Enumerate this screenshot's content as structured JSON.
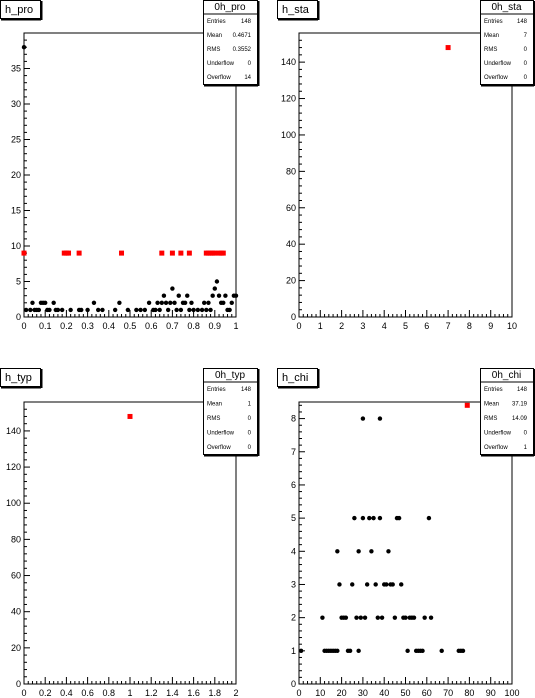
{
  "colors": {
    "black_series": "#000000",
    "red_series": "#ff0000"
  },
  "chart_data": [
    {
      "type": "scatter",
      "title": "h_pro",
      "stats": {
        "name": "0h_pro",
        "rows": [
          {
            "label": "Entries",
            "value": "148"
          },
          {
            "label": "Mean",
            "value": "0.4671"
          },
          {
            "label": "RMS",
            "value": "0.3552"
          },
          {
            "label": "Underflow",
            "value": "0"
          },
          {
            "label": "Overflow",
            "value": "14"
          }
        ]
      },
      "xlim": [
        0,
        1
      ],
      "ylim": [
        0,
        40
      ],
      "xticks": [
        0,
        0.1,
        0.2,
        0.3,
        0.4,
        0.5,
        0.6,
        0.7,
        0.8,
        0.9,
        1
      ],
      "xtick_labels": [
        "0",
        "0.1",
        "0.2",
        "0.3",
        "0.4",
        "0.5",
        "0.6",
        "0.7",
        "0.8",
        "0.9",
        "1"
      ],
      "yticks": [
        0,
        5,
        10,
        15,
        20,
        25,
        30,
        35
      ],
      "ytick_labels": [
        "0",
        "5",
        "10",
        "15",
        "20",
        "25",
        "30",
        "35"
      ],
      "series": [
        {
          "color": "black",
          "marker": "circle",
          "x": [
            0,
            0.01,
            0.03,
            0.04,
            0.05,
            0.06,
            0.07,
            0.08,
            0.09,
            0.1,
            0.11,
            0.12,
            0.14,
            0.15,
            0.16,
            0.18,
            0.22,
            0.26,
            0.27,
            0.3,
            0.33,
            0.35,
            0.37,
            0.43,
            0.45,
            0.49,
            0.53,
            0.55,
            0.57,
            0.59,
            0.61,
            0.62,
            0.63,
            0.64,
            0.65,
            0.66,
            0.67,
            0.68,
            0.69,
            0.7,
            0.71,
            0.72,
            0.73,
            0.74,
            0.75,
            0.76,
            0.77,
            0.78,
            0.79,
            0.8,
            0.82,
            0.84,
            0.85,
            0.86,
            0.87,
            0.88,
            0.89,
            0.9,
            0.91,
            0.92,
            0.93,
            0.94,
            0.95,
            0.96,
            0.97,
            0.98,
            0.99,
            1.0
          ],
          "y": [
            38,
            1,
            1,
            2,
            1,
            1,
            1,
            2,
            2,
            2,
            1,
            1,
            2,
            1,
            1,
            1,
            1,
            1,
            1,
            1,
            2,
            1,
            1,
            1,
            2,
            1,
            1,
            1,
            1,
            2,
            1,
            1,
            2,
            1,
            2,
            3,
            2,
            1,
            2,
            4,
            2,
            1,
            3,
            1,
            2,
            2,
            3,
            1,
            2,
            1,
            1,
            1,
            2,
            1,
            2,
            1,
            3,
            4,
            5,
            3,
            2,
            2,
            3,
            1,
            1,
            2,
            3,
            3
          ]
        },
        {
          "color": "red",
          "marker": "square",
          "x": [
            0.0,
            0.19,
            0.2,
            0.21,
            0.26,
            0.46,
            0.65,
            0.7,
            0.74,
            0.78,
            0.86,
            0.87,
            0.88,
            0.89,
            0.9,
            0.92,
            0.93,
            0.94
          ],
          "y": [
            9,
            9,
            9,
            9,
            9,
            9,
            9,
            9,
            9,
            9,
            9,
            9,
            9,
            9,
            9,
            9,
            9,
            9
          ]
        }
      ]
    },
    {
      "type": "scatter",
      "title": "h_sta",
      "stats": {
        "name": "0h_sta",
        "rows": [
          {
            "label": "Entries",
            "value": "148"
          },
          {
            "label": "Mean",
            "value": "7"
          },
          {
            "label": "RMS",
            "value": "0"
          },
          {
            "label": "Underflow",
            "value": "0"
          },
          {
            "label": "Overflow",
            "value": "0"
          }
        ]
      },
      "xlim": [
        0,
        10
      ],
      "ylim": [
        0,
        156
      ],
      "xticks": [
        0,
        1,
        2,
        3,
        4,
        5,
        6,
        7,
        8,
        9,
        10
      ],
      "xtick_labels": [
        "0",
        "1",
        "2",
        "3",
        "4",
        "5",
        "6",
        "7",
        "8",
        "9",
        "10"
      ],
      "yticks": [
        0,
        20,
        40,
        60,
        80,
        100,
        120,
        140
      ],
      "ytick_labels": [
        "0",
        "20",
        "40",
        "60",
        "80",
        "100",
        "120",
        "140"
      ],
      "series": [
        {
          "color": "red",
          "marker": "square",
          "x": [
            7
          ],
          "y": [
            148
          ]
        }
      ]
    },
    {
      "type": "scatter",
      "title": "h_typ",
      "stats": {
        "name": "0h_typ",
        "rows": [
          {
            "label": "Entries",
            "value": "148"
          },
          {
            "label": "Mean",
            "value": "1"
          },
          {
            "label": "RMS",
            "value": "0"
          },
          {
            "label": "Underflow",
            "value": "0"
          },
          {
            "label": "Overflow",
            "value": "0"
          }
        ]
      },
      "xlim": [
        0,
        2
      ],
      "ylim": [
        0,
        156
      ],
      "xticks": [
        0,
        0.2,
        0.4,
        0.6,
        0.8,
        1,
        1.2,
        1.4,
        1.6,
        1.8,
        2
      ],
      "xtick_labels": [
        "0",
        "0.2",
        "0.4",
        "0.6",
        "0.8",
        "1",
        "1.2",
        "1.4",
        "1.6",
        "1.8",
        "2"
      ],
      "yticks": [
        0,
        20,
        40,
        60,
        80,
        100,
        120,
        140
      ],
      "ytick_labels": [
        "0",
        "20",
        "40",
        "60",
        "80",
        "100",
        "120",
        "140"
      ],
      "series": [
        {
          "color": "red",
          "marker": "square",
          "x": [
            1
          ],
          "y": [
            148
          ]
        }
      ]
    },
    {
      "type": "scatter",
      "title": "h_chi",
      "stats": {
        "name": "0h_chi",
        "rows": [
          {
            "label": "Entries",
            "value": "148"
          },
          {
            "label": "Mean",
            "value": "37.19"
          },
          {
            "label": "RMS",
            "value": "14.09"
          },
          {
            "label": "Underflow",
            "value": "0"
          },
          {
            "label": "Overflow",
            "value": "1"
          }
        ]
      },
      "xlim": [
        0,
        100
      ],
      "ylim": [
        0,
        8.5
      ],
      "xticks": [
        0,
        10,
        20,
        30,
        40,
        50,
        60,
        70,
        80,
        90,
        100
      ],
      "xtick_labels": [
        "0",
        "10",
        "20",
        "30",
        "40",
        "50",
        "60",
        "70",
        "80",
        "90",
        "100"
      ],
      "yticks": [
        0,
        1,
        2,
        3,
        4,
        5,
        6,
        7,
        8
      ],
      "ytick_labels": [
        "0",
        "1",
        "2",
        "3",
        "4",
        "5",
        "6",
        "7",
        "8"
      ],
      "series": [
        {
          "color": "black",
          "marker": "circle",
          "x": [
            1,
            11,
            12,
            13,
            14,
            15,
            16,
            17,
            18,
            18,
            19,
            20,
            21,
            22,
            23,
            24,
            25,
            26,
            27,
            28,
            28,
            29,
            30,
            30,
            31,
            32,
            33,
            34,
            35,
            36,
            37,
            38,
            38,
            39,
            40,
            41,
            42,
            43,
            44,
            45,
            46,
            47,
            48,
            49,
            50,
            51,
            52,
            53,
            54,
            55,
            56,
            57,
            58,
            59,
            61,
            62,
            67,
            75,
            76,
            77
          ],
          "y": [
            1,
            2,
            1,
            1,
            1,
            1,
            1,
            1,
            4,
            1,
            3,
            2,
            2,
            2,
            1,
            1,
            3,
            5,
            2,
            4,
            1,
            2,
            8,
            5,
            2,
            3,
            5,
            4,
            5,
            3,
            2,
            8,
            5,
            2,
            3,
            3,
            4,
            3,
            3,
            2,
            5,
            5,
            3,
            2,
            2,
            1,
            2,
            2,
            2,
            1,
            1,
            1,
            1,
            2,
            5,
            2,
            1,
            1,
            1,
            1
          ]
        },
        {
          "color": "red",
          "marker": "square",
          "x": [
            79
          ],
          "y": [
            8.4
          ]
        }
      ]
    }
  ]
}
